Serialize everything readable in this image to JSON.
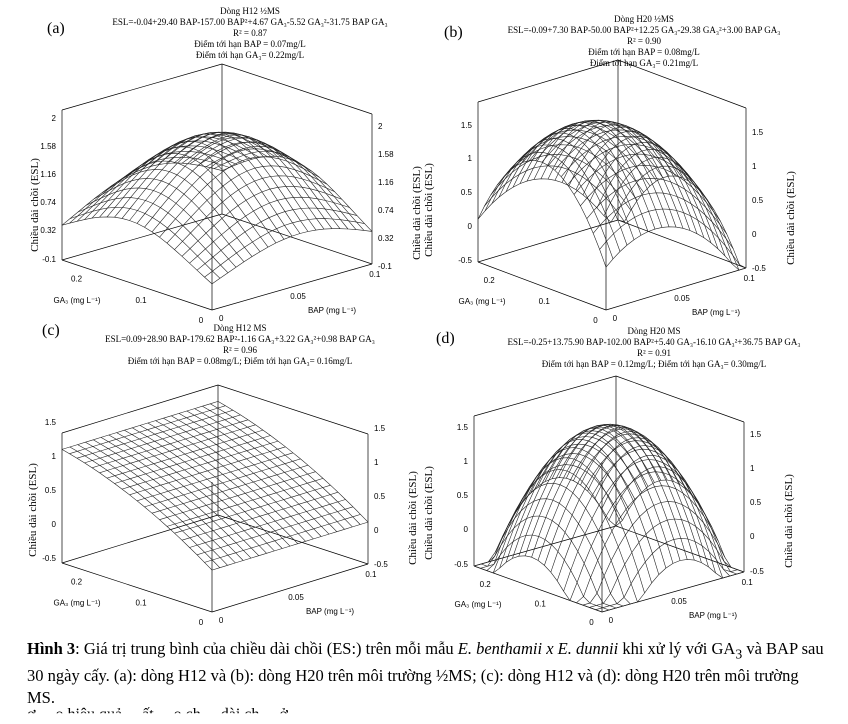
{
  "panels": [
    {
      "letter": "(a)",
      "header": {
        "line_a": "Dòng H12    ½MS",
        "line_b": "ESL=-0.04+29.40 BAP-157.00 BAP²+4.67 GA₃-5.52 GA₃²-31.75 BAP GA₃",
        "line_c": "R² = 0.87",
        "line_d": "Điểm tới hạn BAP = 0.07mg/L",
        "line_e": "Điểm tới hạn GA₃= 0.22mg/L"
      },
      "z_ticks": [
        "2",
        "1.58",
        "1.16",
        "0.74",
        "0.32",
        "-0.1"
      ],
      "ylabel": "Chiều dài chồi (ESL)"
    },
    {
      "letter": "(b)",
      "header": {
        "line_a": "Dòng H20    ½MS",
        "line_b": "ESL=-0.09+7.30 BAP-50.00 BAP²+12.25 GA₃-29.38 GA₃²+3.00 BAP GA₃",
        "line_c": "R² = 0.90",
        "line_d": "Điểm tới hạn BAP = 0.08mg/L",
        "line_e": "Điểm tới hạn GA₃= 0.21mg/L"
      },
      "z_ticks": [
        "1.5",
        "1",
        "0.5",
        "0",
        "-0.5"
      ],
      "ylabel": "Chiều dài chồi (ESL)"
    },
    {
      "letter": "(c)",
      "header": {
        "line_a": "Dòng H12    MS",
        "line_b": "ESL=0.09+28.90 BAP-179.62 BAP²-1.16 GA₃+3.22 GA₃²+0.98 BAP GA₃",
        "line_c": "R² = 0.96",
        "line_d": "Điểm tới hạn BAP = 0.08mg/L; Điểm tới hạn GA₃= 0.16mg/L",
        "line_e": ""
      },
      "z_ticks": [
        "1.5",
        "1",
        "0.5",
        "0",
        "-0.5"
      ],
      "ylabel": "Chiều dài chồi (ESL)"
    },
    {
      "letter": "(d)",
      "header": {
        "line_a": "Dòng H20    MS",
        "line_b": "ESL=-0.25+13.75.90 BAP-102.00 BAP²+5.40 GA₃-16.10 GA₃²+36.75 BAP GA₃",
        "line_c": "R² = 0.91",
        "line_d": "Điểm tới hạn BAP = 0.12mg/L; Điểm tới hạn GA₃= 0.30mg/L",
        "line_e": ""
      },
      "z_ticks": [
        "1.5",
        "1",
        "0.5",
        "0",
        "-0.5"
      ],
      "ylabel": "Chiều dài chồi (ESL)"
    }
  ],
  "axes": {
    "ga_title": "GA₃ (mg L⁻¹)",
    "bap_title": "BAP (mg L⁻¹)",
    "ga_ticks": [
      "0.2",
      "0.1",
      "0"
    ],
    "bap_ticks": [
      "0",
      "0.05",
      "0.1"
    ]
  },
  "caption": {
    "lead": "Hình 3",
    "text_1": ": Giá trị trung bình của chiều dài chồi (ES:) trên mỗi mẫu ",
    "species": "E. benthamii x E. dunnii",
    "text_2": " khi xử lý với GA",
    "sub_3": "3",
    "text_3": " và BAP sau 30 ngày cấy. (a): dòng H12 và (b): dòng H20 trên môi trường ½MS; (c): dòng H12 và (d): dòng H20 trên môi trường MS."
  },
  "cutoff_line": "ơ ... o hiệu quả ... ất ... o ch ... dài ch ... ở ..."
}
